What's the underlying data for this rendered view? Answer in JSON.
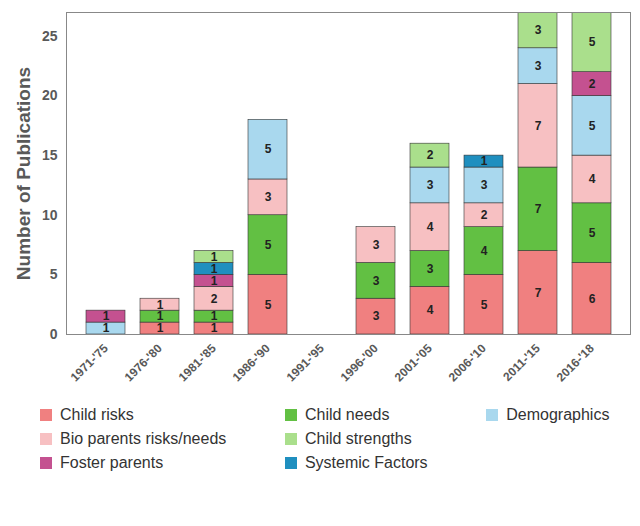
{
  "chart_data": {
    "type": "bar",
    "stacked": true,
    "data_labels": true,
    "grid": false,
    "legend": "bottom",
    "y_label": "Number of Publications",
    "categories": [
      "1971-'75",
      "1976-'80",
      "1981-'85",
      "1986-'90",
      "1991-'95",
      "1996-'00",
      "2001-'05",
      "2006-'10",
      "2011-'15",
      "2016-'18"
    ],
    "ylim": [
      0,
      27
    ],
    "yticks": [
      0,
      5,
      10,
      15,
      20,
      25
    ],
    "series": [
      {
        "name": "Child risks",
        "color": "#f08080",
        "values": [
          null,
          1,
          1,
          5,
          null,
          3,
          4,
          5,
          7,
          6
        ]
      },
      {
        "name": "Child needs",
        "color": "#62c043",
        "values": [
          null,
          1,
          1,
          5,
          null,
          3,
          3,
          4,
          7,
          5
        ]
      },
      {
        "name": "Bio parents risks/needs",
        "color": "#f7c0c2",
        "values": [
          null,
          1,
          2,
          3,
          null,
          3,
          4,
          2,
          7,
          4
        ]
      },
      {
        "name": "Demographics",
        "color": "#a9d8ee",
        "values": [
          1,
          null,
          null,
          5,
          null,
          null,
          3,
          3,
          3,
          5
        ]
      },
      {
        "name": "Foster parents",
        "color": "#c45190",
        "values": [
          1,
          null,
          1,
          null,
          null,
          null,
          null,
          null,
          null,
          2
        ]
      },
      {
        "name": "Systemic Factors",
        "color": "#1f8fbf",
        "values": [
          null,
          null,
          1,
          null,
          null,
          null,
          null,
          1,
          null,
          null
        ]
      },
      {
        "name": "Child strengths",
        "color": "#aadf8c",
        "values": [
          null,
          null,
          1,
          null,
          null,
          null,
          2,
          null,
          3,
          5
        ]
      }
    ]
  }
}
